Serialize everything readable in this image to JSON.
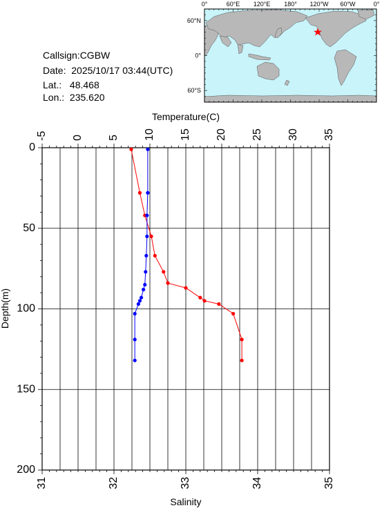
{
  "meta": {
    "callsign": "Callsign:CGBW",
    "date": "Date:  2025/10/17 03:44(UTC)",
    "lat": "Lat.:   48.468",
    "lon": "Lon.:  235.620"
  },
  "map": {
    "top_ticks": [
      "0°",
      "60°E",
      "120°E",
      "180°",
      "120°W",
      "60°W",
      "0°"
    ],
    "lat_ticks": [
      "60°N",
      "0°",
      "60°S"
    ],
    "station_marker": "red star",
    "colors": {
      "ocean": "#c8f4fa",
      "land": "#b8b8b8",
      "marker": "#ff0000"
    }
  },
  "chart_data": {
    "type": "line",
    "top_axis": {
      "label": "Temperature(C)",
      "range": [
        -5,
        35
      ],
      "ticks": [
        "-5",
        "0",
        "5",
        "10",
        "15",
        "20",
        "25",
        "30",
        "35"
      ]
    },
    "bottom_axis": {
      "label": "Salinity",
      "range": [
        31,
        35
      ],
      "ticks": [
        "31",
        "32",
        "33",
        "34",
        "35"
      ]
    },
    "y_axis": {
      "label": "Depth(m)",
      "range": [
        0,
        200
      ],
      "inverted": true,
      "ticks": [
        "0",
        "50",
        "100",
        "150",
        "200"
      ]
    },
    "grid": true,
    "series": [
      {
        "quantity": "temperature",
        "axis": "top",
        "color": "#ff0000",
        "depth": [
          1,
          28,
          42,
          55,
          67,
          77,
          84,
          87,
          93,
          95,
          97,
          103,
          119,
          132
        ],
        "values": [
          7.4,
          8.6,
          9.3,
          10.2,
          10.7,
          11.9,
          12.5,
          15.0,
          17.0,
          17.6,
          19.6,
          21.6,
          22.8,
          22.8
        ]
      },
      {
        "quantity": "salinity",
        "axis": "bottom",
        "color": "#0000ff",
        "depth": [
          1,
          28,
          42,
          55,
          67,
          77,
          85,
          88,
          93,
          95,
          97,
          103,
          119,
          132
        ],
        "values": [
          32.47,
          32.47,
          32.46,
          32.46,
          32.45,
          32.44,
          32.43,
          32.41,
          32.38,
          32.36,
          32.34,
          32.29,
          32.29,
          32.29
        ]
      }
    ]
  }
}
